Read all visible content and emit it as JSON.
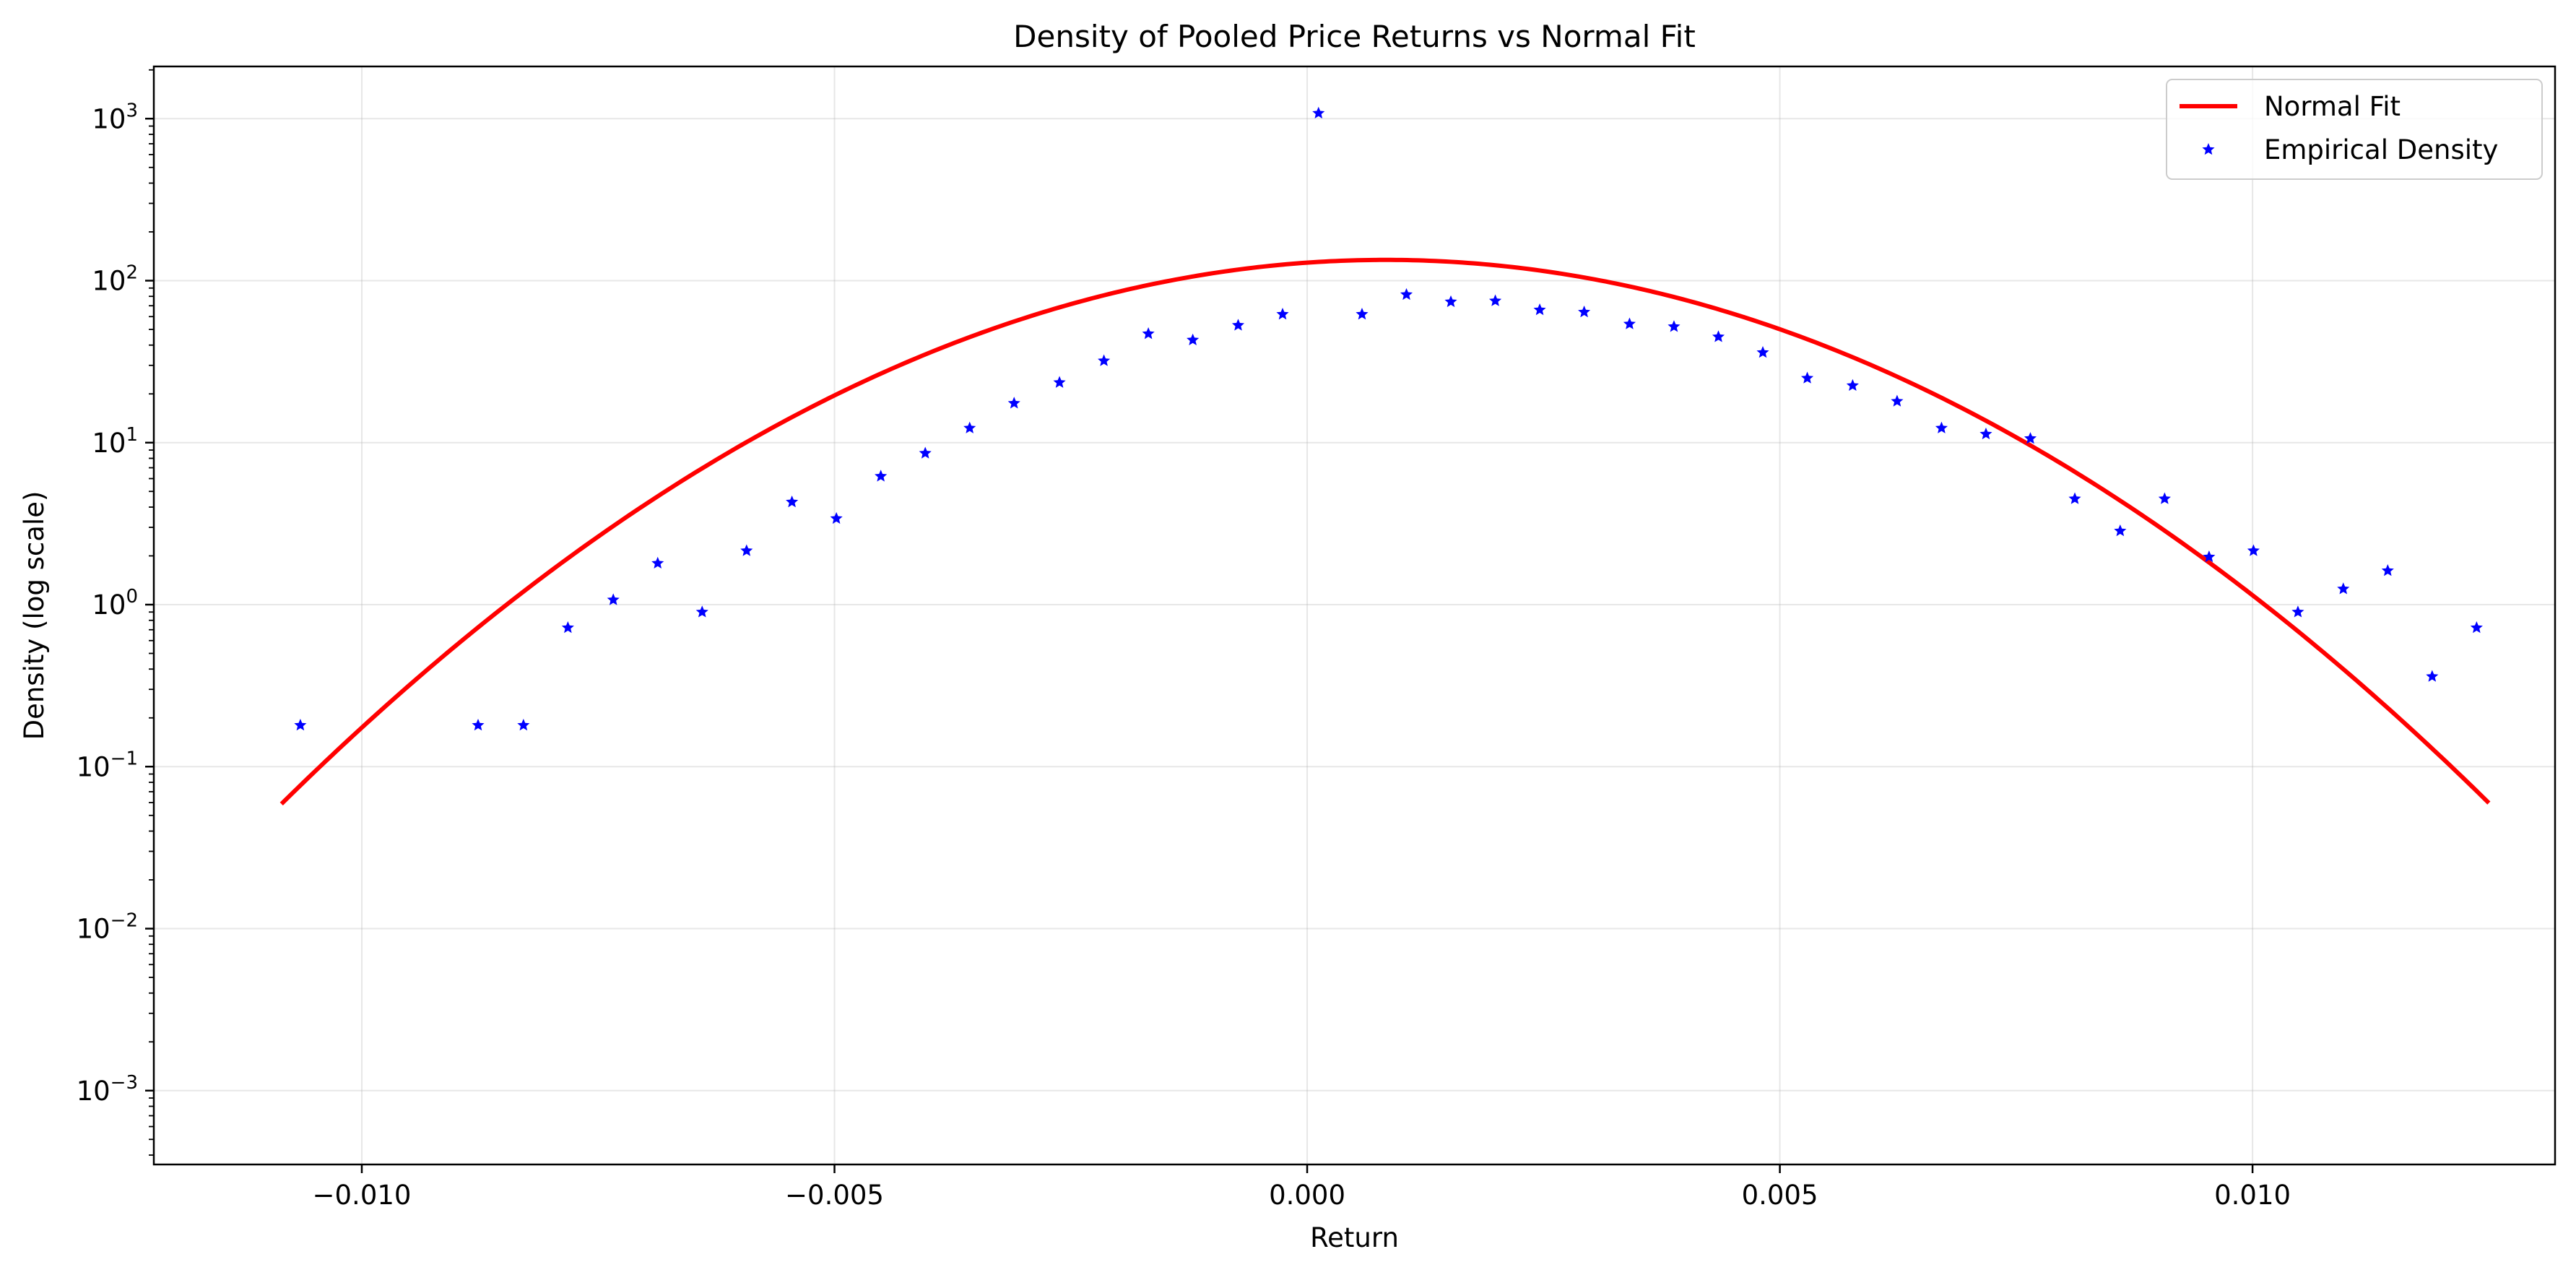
{
  "chart_data": {
    "type": "line",
    "title": "Density of Pooled Price Returns vs Normal Fit",
    "xlabel": "Return",
    "ylabel": "Density (log scale)",
    "xlim": [
      -0.0122,
      0.0132
    ],
    "ylim": [
      0.00035,
      2100
    ],
    "yscale": "log",
    "grid": true,
    "legend_position": "top-right",
    "x_ticks": [
      {
        "value": -0.01,
        "label": "−0.010"
      },
      {
        "value": -0.005,
        "label": "−0.005"
      },
      {
        "value": 0.0,
        "label": "0.000"
      },
      {
        "value": 0.005,
        "label": "0.005"
      },
      {
        "value": 0.01,
        "label": "0.010"
      }
    ],
    "y_ticks": [
      {
        "value": 0.001,
        "base": "10",
        "exp": "−3"
      },
      {
        "value": 0.01,
        "base": "10",
        "exp": "−2"
      },
      {
        "value": 0.1,
        "base": "10",
        "exp": "−1"
      },
      {
        "value": 1,
        "base": "10",
        "exp": "0"
      },
      {
        "value": 10,
        "base": "10",
        "exp": "1"
      },
      {
        "value": 100,
        "base": "10",
        "exp": "2"
      },
      {
        "value": 1000,
        "base": "10",
        "exp": "3"
      }
    ],
    "series": [
      {
        "name": "Normal Fit",
        "kind": "line",
        "color": "#ff0000",
        "mean": 0.00083,
        "std": 0.00297,
        "x_range": [
          -0.01085,
          0.0125
        ]
      },
      {
        "name": "Empirical Density",
        "kind": "scatter",
        "marker": "star",
        "color": "#0000ff",
        "points": [
          [
            -0.01065,
            0.18
          ],
          [
            -0.00877,
            0.18
          ],
          [
            -0.00829,
            0.18
          ],
          [
            -0.00782,
            0.72
          ],
          [
            -0.00734,
            1.07
          ],
          [
            -0.00687,
            1.8
          ],
          [
            -0.0064,
            0.9
          ],
          [
            -0.00593,
            2.15
          ],
          [
            -0.00545,
            4.3
          ],
          [
            -0.00498,
            3.4
          ],
          [
            -0.00451,
            6.2
          ],
          [
            -0.00404,
            8.6
          ],
          [
            -0.00357,
            12.3
          ],
          [
            -0.0031,
            17.5
          ],
          [
            -0.00262,
            23.5
          ],
          [
            -0.00215,
            32
          ],
          [
            -0.00168,
            47
          ],
          [
            -0.00121,
            43
          ],
          [
            -0.00073,
            53
          ],
          [
            -0.00026,
            62
          ],
          [
            0.00012,
            1080
          ],
          [
            0.00058,
            62
          ],
          [
            0.00105,
            82
          ],
          [
            0.00152,
            74
          ],
          [
            0.00199,
            75
          ],
          [
            0.00246,
            66
          ],
          [
            0.00293,
            64
          ],
          [
            0.00341,
            54
          ],
          [
            0.00388,
            52
          ],
          [
            0.00435,
            45
          ],
          [
            0.00482,
            36
          ],
          [
            0.00529,
            25
          ],
          [
            0.00577,
            22.5
          ],
          [
            0.00624,
            18
          ],
          [
            0.00671,
            12.3
          ],
          [
            0.00718,
            11.3
          ],
          [
            0.00765,
            10.6
          ],
          [
            0.00812,
            4.5
          ],
          [
            0.0086,
            2.85
          ],
          [
            0.00907,
            4.5
          ],
          [
            0.00954,
            1.97
          ],
          [
            0.01001,
            2.15
          ],
          [
            0.01048,
            0.9
          ],
          [
            0.01096,
            1.25
          ],
          [
            0.01143,
            1.62
          ],
          [
            0.0119,
            0.36
          ],
          [
            0.01237,
            0.72
          ]
        ]
      }
    ]
  }
}
